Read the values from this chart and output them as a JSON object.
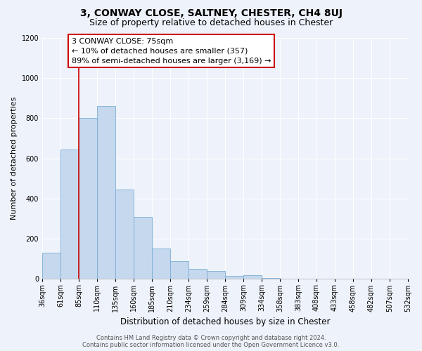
{
  "title": "3, CONWAY CLOSE, SALTNEY, CHESTER, CH4 8UJ",
  "subtitle": "Size of property relative to detached houses in Chester",
  "xlabel": "Distribution of detached houses by size in Chester",
  "ylabel": "Number of detached properties",
  "bar_values": [
    130,
    645,
    800,
    860,
    445,
    310,
    150,
    90,
    50,
    40,
    15,
    20,
    5,
    2,
    2,
    1,
    1,
    1,
    0,
    0
  ],
  "bar_labels": [
    "36sqm",
    "61sqm",
    "85sqm",
    "110sqm",
    "135sqm",
    "160sqm",
    "185sqm",
    "210sqm",
    "234sqm",
    "259sqm",
    "284sqm",
    "309sqm",
    "334sqm",
    "358sqm",
    "383sqm",
    "408sqm",
    "433sqm",
    "458sqm",
    "482sqm",
    "507sqm",
    "532sqm"
  ],
  "bar_color": "#c5d8ed",
  "bar_edge_color": "#7aaed6",
  "background_color": "#eef2fa",
  "grid_color": "#ffffff",
  "property_line_color": "#cc0000",
  "annotation_text": "3 CONWAY CLOSE: 75sqm\n← 10% of detached houses are smaller (357)\n89% of semi-detached houses are larger (3,169) →",
  "annotation_box_color": "#ffffff",
  "annotation_box_edge": "#cc0000",
  "ylim": [
    0,
    1200
  ],
  "yticks": [
    0,
    200,
    400,
    600,
    800,
    1000,
    1200
  ],
  "footer_text": "Contains HM Land Registry data © Crown copyright and database right 2024.\nContains public sector information licensed under the Open Government Licence v3.0.",
  "title_fontsize": 10,
  "subtitle_fontsize": 9,
  "xlabel_fontsize": 8.5,
  "ylabel_fontsize": 8,
  "tick_fontsize": 7,
  "annotation_fontsize": 8
}
